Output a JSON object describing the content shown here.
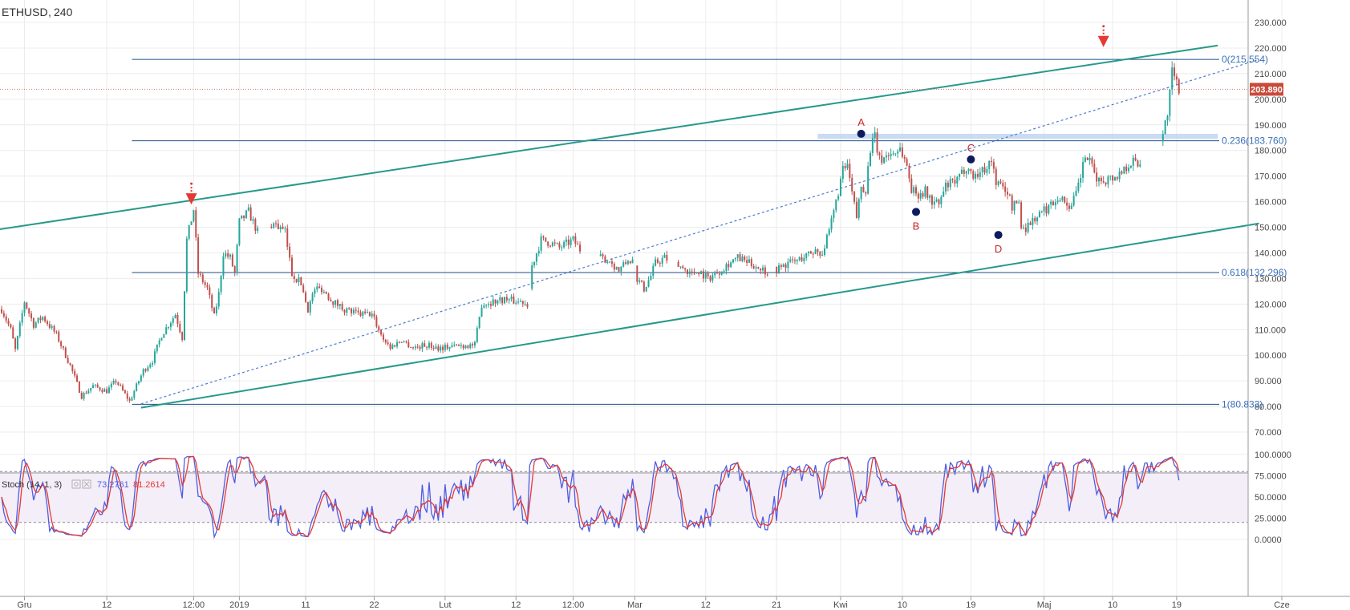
{
  "colors": {
    "up": "#26a69a",
    "down": "#c0504d",
    "channel": "#26998a",
    "fib": "#1f4e8c",
    "dotted": "#4a7bd0",
    "zone": "#b8cff0",
    "price_line": "#e57373",
    "badge": "#c94a3a",
    "stoch_k": "#4f5de0",
    "stoch_d": "#e53935",
    "stoch_band": "#f3eef8",
    "wave_dot": "#0d1b5e",
    "arrow": "#e53935",
    "grid": "#ececec"
  },
  "chart_data": {
    "type": "candlestick",
    "symbol": "ETHUSD",
    "interval": "240",
    "price_axis": {
      "ticks": [
        "230.000",
        "220.000",
        "210.000",
        "200.000",
        "190.000",
        "180.000",
        "170.000",
        "160.000",
        "150.000",
        "140.000",
        "130.000",
        "120.000",
        "110.000",
        "100.000",
        "90.000",
        "80.000",
        "70.000"
      ],
      "range": [
        67,
        234
      ]
    },
    "time_axis": {
      "labels": [
        "Gru",
        "12",
        "12:00",
        "2019",
        "11",
        "22",
        "Lut",
        "12",
        "12:00",
        "Mar",
        "12",
        "21",
        "Kwi",
        "10",
        "19",
        "Maj",
        "10",
        "19",
        "Cze"
      ],
      "label_bars": [
        10,
        46,
        84,
        104,
        133,
        163,
        194,
        225,
        250,
        277,
        308,
        339,
        367,
        394,
        424,
        456,
        486,
        514,
        560
      ]
    },
    "current_price": "203.890",
    "price_waypoints": [
      [
        0,
        118
      ],
      [
        4,
        110
      ],
      [
        6,
        102
      ],
      [
        10,
        121
      ],
      [
        14,
        112
      ],
      [
        18,
        115
      ],
      [
        24,
        108
      ],
      [
        30,
        96
      ],
      [
        35,
        84
      ],
      [
        40,
        88
      ],
      [
        46,
        86
      ],
      [
        50,
        90
      ],
      [
        56,
        82
      ],
      [
        62,
        94
      ],
      [
        66,
        98
      ],
      [
        70,
        108
      ],
      [
        76,
        116
      ],
      [
        79,
        107
      ],
      [
        81,
        145
      ],
      [
        84,
        157
      ],
      [
        86,
        132
      ],
      [
        90,
        126
      ],
      [
        93,
        115
      ],
      [
        95,
        124
      ],
      [
        97,
        140
      ],
      [
        100,
        138
      ],
      [
        102,
        132
      ],
      [
        104,
        152
      ],
      [
        108,
        156
      ],
      [
        112,
        148
      ],
      [
        116,
        152
      ],
      [
        120,
        151
      ],
      [
        124,
        148
      ],
      [
        127,
        132
      ],
      [
        131,
        128
      ],
      [
        134,
        118
      ],
      [
        137,
        126
      ],
      [
        140,
        126
      ],
      [
        145,
        121
      ],
      [
        150,
        118
      ],
      [
        156,
        116
      ],
      [
        162,
        116
      ],
      [
        166,
        108
      ],
      [
        170,
        103
      ],
      [
        175,
        106
      ],
      [
        180,
        103
      ],
      [
        186,
        104
      ],
      [
        191,
        103
      ],
      [
        204,
        104
      ],
      [
        207,
        104
      ],
      [
        210,
        120
      ],
      [
        215,
        121
      ],
      [
        220,
        122
      ],
      [
        225,
        121
      ],
      [
        228,
        121
      ],
      [
        230,
        120
      ],
      [
        232,
        135
      ],
      [
        236,
        145
      ],
      [
        240,
        144
      ],
      [
        244,
        142
      ],
      [
        250,
        145
      ],
      [
        254,
        140
      ],
      [
        258,
        136
      ],
      [
        262,
        138
      ],
      [
        266,
        137
      ],
      [
        270,
        133
      ],
      [
        274,
        137
      ],
      [
        276,
        137
      ],
      [
        278,
        130
      ],
      [
        281,
        126
      ],
      [
        284,
        131
      ],
      [
        286,
        136
      ],
      [
        290,
        138
      ],
      [
        294,
        136
      ],
      [
        298,
        134
      ],
      [
        302,
        132
      ],
      [
        305,
        133
      ],
      [
        309,
        130
      ],
      [
        314,
        133
      ],
      [
        318,
        136
      ],
      [
        322,
        138
      ],
      [
        327,
        136
      ],
      [
        332,
        134
      ],
      [
        336,
        132
      ],
      [
        340,
        134
      ],
      [
        344,
        136
      ],
      [
        348,
        137
      ],
      [
        352,
        139
      ],
      [
        356,
        141
      ],
      [
        359,
        140
      ],
      [
        362,
        148
      ],
      [
        365,
        160
      ],
      [
        368,
        172
      ],
      [
        370,
        174
      ],
      [
        372,
        163
      ],
      [
        374,
        154
      ],
      [
        376,
        166
      ],
      [
        378,
        165
      ],
      [
        380,
        181
      ],
      [
        382,
        185
      ],
      [
        384,
        176
      ],
      [
        387,
        178
      ],
      [
        390,
        179
      ],
      [
        393,
        181
      ],
      [
        396,
        174
      ],
      [
        398,
        165
      ],
      [
        400,
        163
      ],
      [
        404,
        164
      ],
      [
        407,
        160
      ],
      [
        410,
        159
      ],
      [
        413,
        166
      ],
      [
        418,
        168
      ],
      [
        422,
        174
      ],
      [
        425,
        170
      ],
      [
        429,
        172
      ],
      [
        433,
        176
      ],
      [
        435,
        168
      ],
      [
        437,
        166
      ],
      [
        440,
        164
      ],
      [
        442,
        158
      ],
      [
        445,
        160
      ],
      [
        446,
        150
      ],
      [
        448,
        150
      ],
      [
        450,
        152
      ],
      [
        454,
        155
      ],
      [
        458,
        158
      ],
      [
        462,
        162
      ],
      [
        465,
        160
      ],
      [
        468,
        158
      ],
      [
        470,
        163
      ],
      [
        472,
        170
      ],
      [
        474,
        178
      ],
      [
        476,
        175
      ],
      [
        478,
        171
      ],
      [
        480,
        168
      ],
      [
        484,
        169
      ],
      [
        488,
        170
      ],
      [
        492,
        174
      ],
      [
        495,
        176
      ],
      [
        496,
        175
      ],
      [
        498,
        175
      ],
      [
        508,
        186
      ],
      [
        510,
        195
      ],
      [
        512,
        210
      ],
      [
        514,
        206
      ],
      [
        515,
        204
      ]
    ],
    "price_gaps": [
      [
        112,
        118
      ],
      [
        230,
        232
      ],
      [
        253,
        262
      ],
      [
        276,
        278
      ],
      [
        291,
        296
      ],
      [
        335,
        339
      ],
      [
        498,
        508
      ]
    ],
    "fibonacci": [
      {
        "label": "0(215.554)",
        "value": 215.554
      },
      {
        "label": "0.236(183.760)",
        "value": 183.76
      },
      {
        "label": "0.618(132.296)",
        "value": 132.296
      },
      {
        "label": "1(80.833)",
        "value": 80.833
      }
    ],
    "channel_upper": [
      [
        -6,
        148.5
      ],
      [
        532,
        221
      ]
    ],
    "channel_lower": [
      [
        61,
        79.5
      ],
      [
        550,
        151.5
      ]
    ],
    "trend_dotted": [
      [
        61,
        81
      ],
      [
        550,
        215.5
      ]
    ],
    "resistance_zone": {
      "bar_from": 357,
      "bar_to": 532,
      "low": 184.5,
      "high": 186.5
    },
    "waves": [
      {
        "label": "A",
        "bar": 376,
        "price": 186.5
      },
      {
        "label": "B",
        "bar": 400,
        "price": 156
      },
      {
        "label": "C",
        "bar": 424,
        "price": 176.5
      },
      {
        "label": "D",
        "bar": 436,
        "price": 147
      }
    ],
    "arrows": [
      {
        "bar": 83,
        "price": 157
      },
      {
        "bar": 482,
        "price": 218.5
      }
    ],
    "stochastic": {
      "label": "Stoch (14, 1, 3)",
      "k_value": "73.2761",
      "d_value": "81.2614",
      "ticks": [
        "100.0000",
        "75.0000",
        "50.0000",
        "25.0000",
        "0.0000"
      ],
      "upper_band": 80,
      "lower_band": 20
    }
  }
}
